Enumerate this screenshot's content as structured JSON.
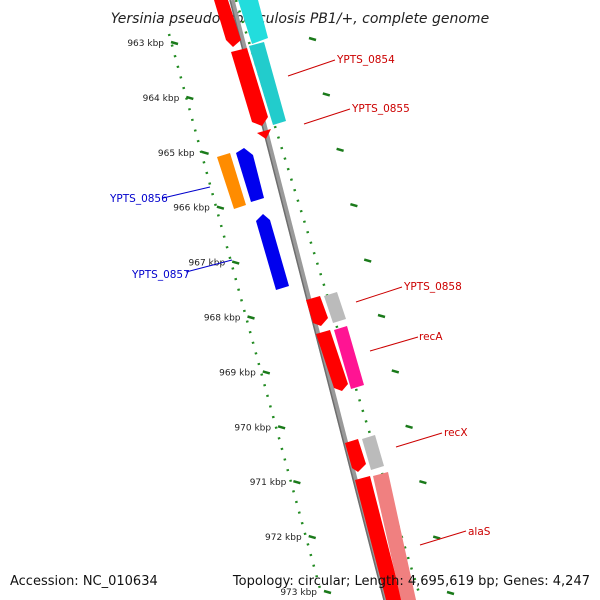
{
  "title": "Yersinia pseudotuberculosis PB1/+, complete genome",
  "footer": {
    "accession": "Accession: NC_010634",
    "topology": "Topology: circular; Length: 4,695,619 bp; Genes: 4,247"
  },
  "ruler_ticks": [
    {
      "label": "963 kbp",
      "kbp": 963
    },
    {
      "label": "964 kbp",
      "kbp": 964
    },
    {
      "label": "965 kbp",
      "kbp": 965
    },
    {
      "label": "966 kbp",
      "kbp": 966
    },
    {
      "label": "967 kbp",
      "kbp": 967
    },
    {
      "label": "968 kbp",
      "kbp": 968
    },
    {
      "label": "969 kbp",
      "kbp": 969
    },
    {
      "label": "970 kbp",
      "kbp": 970
    },
    {
      "label": "971 kbp",
      "kbp": 971
    },
    {
      "label": "972 kbp",
      "kbp": 972
    },
    {
      "label": "973 kbp",
      "kbp": 973
    }
  ],
  "gene_labels": [
    {
      "text": "YPTS_0854",
      "color": "#cc0000",
      "side": "right"
    },
    {
      "text": "YPTS_0855",
      "color": "#cc0000",
      "side": "right"
    },
    {
      "text": "YPTS_0856",
      "color": "#0000cc",
      "side": "left"
    },
    {
      "text": "YPTS_0857",
      "color": "#0000cc",
      "side": "left"
    },
    {
      "text": "YPTS_0858",
      "color": "#cc0000",
      "side": "right"
    },
    {
      "text": "recA",
      "color": "#cc0000",
      "side": "right"
    },
    {
      "text": "recX",
      "color": "#cc0000",
      "side": "right"
    },
    {
      "text": "alaS",
      "color": "#cc0000",
      "side": "right"
    }
  ],
  "colors": {
    "backbone": "#888888",
    "tick_dots": "#228b22",
    "cds_forward": "#ff0000",
    "cds_reverse": "#0000ee",
    "gene_cyan": "#22dddd",
    "gene_magenta": "#ff1493",
    "gene_orange": "#ff8c00",
    "gene_grey": "#bbbbbb",
    "gene_pink": "#f08080"
  }
}
